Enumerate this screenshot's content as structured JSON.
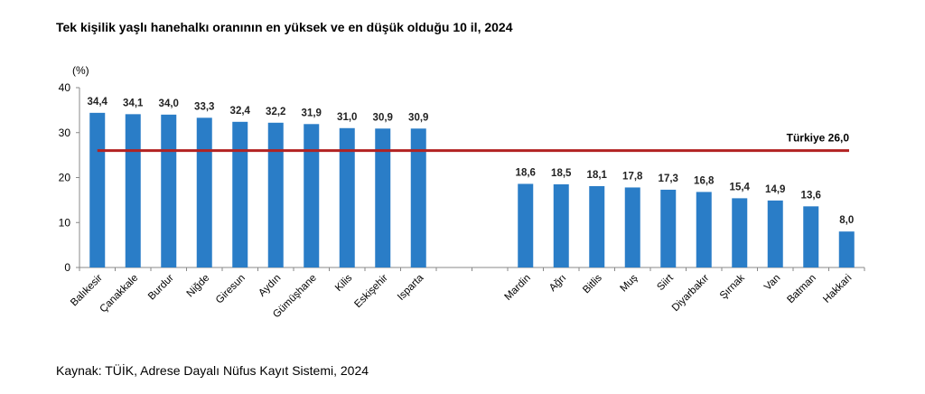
{
  "chart_data": {
    "type": "bar",
    "title": "Tek kişilik yaşlı hanehalkı oranının en yüksek ve en düşük olduğu 10 il, 2024",
    "ylabel": "(%)",
    "xlabel": "",
    "ylim": [
      0,
      40
    ],
    "yticks": [
      "0",
      "10",
      "20",
      "30",
      "40"
    ],
    "grid": false,
    "categories": [
      "Balıkesir",
      "Çanakkale",
      "Burdur",
      "Niğde",
      "Giresun",
      "Aydın",
      "Gümüşhane",
      "Kilis",
      "Eskişehir",
      "Isparta",
      "",
      "",
      "Mardin",
      "Ağrı",
      "Bitlis",
      "Muş",
      "Siirt",
      "Diyarbakır",
      "Şırnak",
      "Van",
      "Batman",
      "Hakkari"
    ],
    "values": [
      34.4,
      34.1,
      34.0,
      33.3,
      32.4,
      32.2,
      31.9,
      31.0,
      30.9,
      30.9,
      null,
      null,
      18.6,
      18.5,
      18.1,
      17.8,
      17.3,
      16.8,
      15.4,
      14.9,
      13.6,
      8.0
    ],
    "data_labels": [
      "34,4",
      "34,1",
      "34,0",
      "33,3",
      "32,4",
      "32,2",
      "31,9",
      "31,0",
      "30,9",
      "30,9",
      "",
      "",
      "18,6",
      "18,5",
      "18,1",
      "17,8",
      "17,3",
      "16,8",
      "15,4",
      "14,9",
      "13,6",
      "8,0"
    ],
    "reference_line": {
      "label": "Türkiye  26,0",
      "value": 26.0
    },
    "colors": {
      "bar": "#2a7dc7",
      "reference": "#b22222"
    }
  },
  "source": "Kaynak: TÜİK, Adrese Dayalı Nüfus Kayıt Sistemi, 2024"
}
